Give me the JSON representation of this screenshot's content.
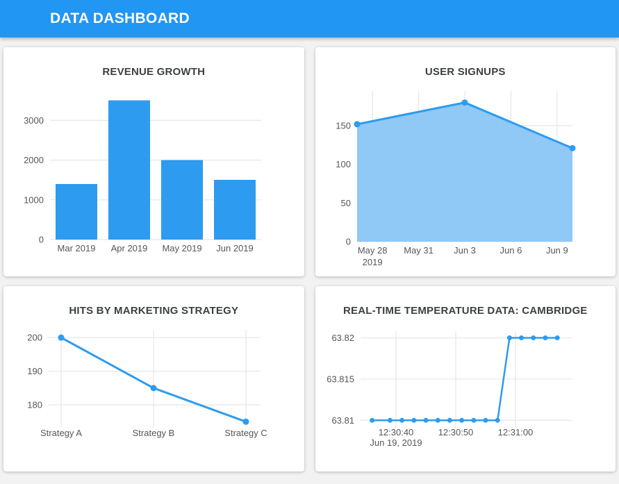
{
  "header": {
    "title": "DATA DASHBOARD"
  },
  "theme": {
    "header_bg": "#2196f3",
    "accent": "#2d9bf0",
    "area_fill": "#90c8f6",
    "grid_color": "#e8e8e8",
    "tick_color": "#565656",
    "title_color": "#3d4043",
    "card_bg": "#ffffff",
    "page_bg": "#f2f2f2"
  },
  "chart_data": [
    {
      "type": "bar",
      "title": "REVENUE GROWTH",
      "categories": [
        "Mar 2019",
        "Apr 2019",
        "May 2019",
        "Jun 2019"
      ],
      "values": [
        1400,
        3500,
        2000,
        1500
      ],
      "yticks": [
        0,
        1000,
        2000,
        3000
      ],
      "ylim": [
        0,
        3600
      ],
      "grid": true,
      "legend": false,
      "bar_color": "#2d9bf0"
    },
    {
      "type": "area",
      "title": "USER SIGNUPS",
      "x": [
        0,
        7,
        14
      ],
      "x_note": "days after May 27, 2019",
      "values": [
        152,
        180,
        121
      ],
      "xticks": [
        {
          "pos": 1,
          "label": "May 28",
          "sublabel": "2019"
        },
        {
          "pos": 4,
          "label": "May 31"
        },
        {
          "pos": 7,
          "label": "Jun 3"
        },
        {
          "pos": 10,
          "label": "Jun 6"
        },
        {
          "pos": 13,
          "label": "Jun 9"
        }
      ],
      "yticks": [
        0,
        50,
        100,
        150
      ],
      "xlim": [
        0,
        14
      ],
      "ylim": [
        0,
        195
      ],
      "grid": true,
      "legend": false,
      "line_color": "#2d9bf0",
      "fill_color": "#90c8f6"
    },
    {
      "type": "line",
      "title": "HITS BY MARKETING STRATEGY",
      "categories": [
        "Strategy A",
        "Strategy B",
        "Strategy C"
      ],
      "values": [
        200,
        185,
        175
      ],
      "yticks": [
        180,
        190,
        200
      ],
      "ylim": [
        173.2,
        202.3
      ],
      "grid": true,
      "legend": false,
      "line_color": "#2d9bf0"
    },
    {
      "type": "line",
      "title": "REAL-TIME TEMPERATURE DATA: CAMBRIDGE",
      "x": [
        36,
        39,
        41,
        43,
        45,
        47,
        49,
        51,
        53,
        55,
        57,
        59,
        61,
        63,
        65,
        67
      ],
      "x_note": "seconds after 12:30:00 on Jun 19, 2019",
      "values": [
        63.81,
        63.81,
        63.81,
        63.81,
        63.81,
        63.81,
        63.81,
        63.81,
        63.81,
        63.81,
        63.81,
        63.82,
        63.82,
        63.82,
        63.82,
        63.82
      ],
      "xticks": [
        {
          "pos": 40,
          "label": "12:30:40",
          "sublabel": "Jun 19, 2019"
        },
        {
          "pos": 50,
          "label": "12:30:50"
        },
        {
          "pos": 60,
          "label": "12:31:00"
        }
      ],
      "yticks": [
        63.81,
        63.815,
        63.82
      ],
      "xlim": [
        34.07,
        69.42
      ],
      "ylim": [
        63.8091,
        63.8208
      ],
      "grid": true,
      "legend": false,
      "line_color": "#2d9bf0"
    }
  ]
}
